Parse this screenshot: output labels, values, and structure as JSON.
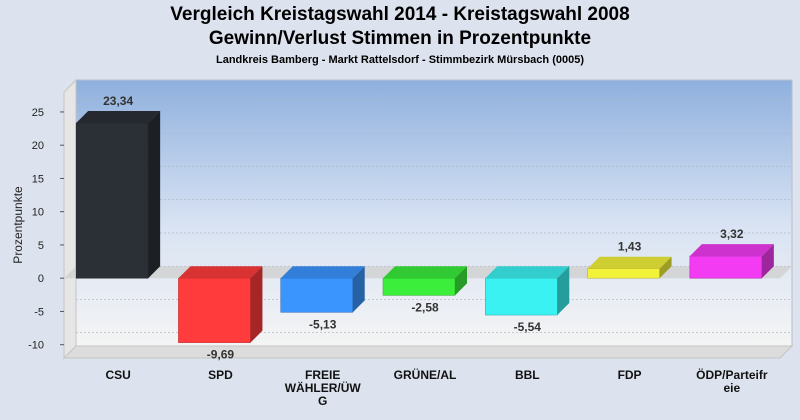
{
  "chart_data": {
    "type": "bar",
    "title": "Vergleich Kreistagswahl 2014 - Kreistagswahl 2008",
    "subtitle": "Gewinn/Verlust Stimmen in Prozentpunkte",
    "caption": "Landkreis Bamberg - Markt Rattelsdorf - Stimmbezirk Mürsbach (0005)",
    "ylabel": "Prozentpunkte",
    "xlabel": "",
    "ylim": [
      -12,
      28
    ],
    "yticks": [
      -10,
      -5,
      0,
      5,
      10,
      15,
      20,
      25
    ],
    "grid": true,
    "categories": [
      "CSU",
      "SPD",
      "FREIE WÄHLER/ÜWG",
      "GRÜNE/AL",
      "BBL",
      "FDP",
      "ÖDP/Parteifreie"
    ],
    "category_label_lines": [
      [
        "CSU"
      ],
      [
        "SPD"
      ],
      [
        "FREIE",
        "WÄHLER/ÜW",
        "G"
      ],
      [
        "GRÜNE/AL"
      ],
      [
        "BBL"
      ],
      [
        "FDP"
      ],
      [
        "ÖDP/Parteifr",
        "eie"
      ]
    ],
    "values": [
      23.34,
      -9.69,
      -5.13,
      -2.58,
      -5.54,
      1.43,
      3.32
    ],
    "value_labels": [
      "23,34",
      "-9,69",
      "-5,13",
      "-2,58",
      "-5,54",
      "1,43",
      "3,32"
    ],
    "colors": [
      "#2b2f36",
      "#ff3b3b",
      "#3b95ff",
      "#3bee3b",
      "#3bf2f2",
      "#f2f23b",
      "#f23bf2"
    ]
  }
}
